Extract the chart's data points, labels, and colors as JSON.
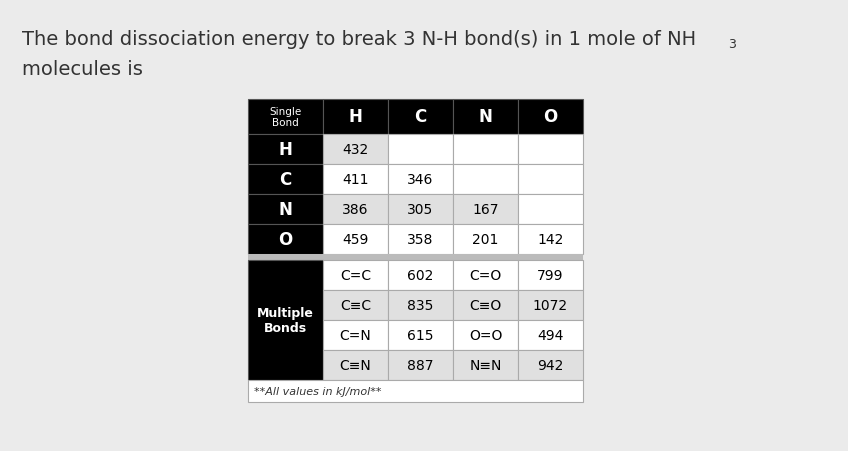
{
  "title_main": "The bond dissociation energy to break 3 N-H bond(s) in 1 mole of NH",
  "title_subscript": "3",
  "title_line2": "molecules is",
  "bg_color": "#ebebeb",
  "single_bond_header": "Single\nBond",
  "col_headers": [
    "H",
    "C",
    "N",
    "O"
  ],
  "row_labels": [
    "H",
    "C",
    "N",
    "O"
  ],
  "single_bond_data": [
    [
      "432",
      "",
      "",
      ""
    ],
    [
      "411",
      "346",
      "",
      ""
    ],
    [
      "386",
      "305",
      "167",
      ""
    ],
    [
      "459",
      "358",
      "201",
      "142"
    ]
  ],
  "single_row_shading": [
    "#e0e0e0",
    "#ffffff",
    "#e0e0e0",
    "#ffffff"
  ],
  "multi_bond_label": "Multiple\nBonds",
  "multi_bond_rows": [
    [
      "C=C",
      "602",
      "C=O",
      "799"
    ],
    [
      "C≡C",
      "835",
      "C≡O",
      "1072"
    ],
    [
      "C=N",
      "615",
      "O=O",
      "494"
    ],
    [
      "C≡N",
      "887",
      "N≡N",
      "942"
    ]
  ],
  "multi_row_shading": [
    "#ffffff",
    "#e0e0e0",
    "#ffffff",
    "#e0e0e0"
  ],
  "footnote": "**All values in kJ/mol**",
  "title_fontsize": 14,
  "header_fontsize": 12,
  "data_fontsize": 10,
  "multi_fontsize": 10,
  "footnote_fontsize": 8
}
